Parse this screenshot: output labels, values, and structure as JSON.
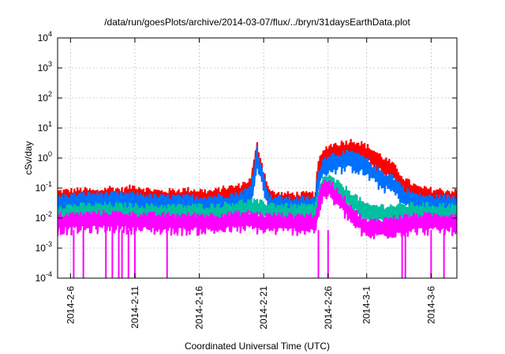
{
  "chart_data": {
    "type": "line",
    "title": "/data/run/goesPlots/archive/2014-03-07/flux/../bryn/31daysEarthData.plot",
    "xlabel": "Coordinated Universal Time (UTC)",
    "ylabel": "cSv/day",
    "x_start": "2014-02-05",
    "x_end": "2014-03-08",
    "y_scale": "log",
    "ylim": [
      0.0001,
      10000
    ],
    "y_ticks": [
      {
        "value": 0.0001,
        "base": "10",
        "exp": "-4"
      },
      {
        "value": 0.001,
        "base": "10",
        "exp": "-3"
      },
      {
        "value": 0.01,
        "base": "10",
        "exp": "-2"
      },
      {
        "value": 0.1,
        "base": "10",
        "exp": "-1"
      },
      {
        "value": 1,
        "base": "10",
        "exp": "0"
      },
      {
        "value": 10,
        "base": "10",
        "exp": "1"
      },
      {
        "value": 100,
        "base": "10",
        "exp": "2"
      },
      {
        "value": 1000,
        "base": "10",
        "exp": "3"
      },
      {
        "value": 10000,
        "base": "10",
        "exp": "4"
      }
    ],
    "x_ticks": [
      {
        "date": "2014-02-06",
        "label": "2014-2-6"
      },
      {
        "date": "2014-02-11",
        "label": "2014-2-11"
      },
      {
        "date": "2014-02-16",
        "label": "2014-2-16"
      },
      {
        "date": "2014-02-21",
        "label": "2014-2-21"
      },
      {
        "date": "2014-02-26",
        "label": "2014-2-26"
      },
      {
        "date": "2014-03-01",
        "label": "2014-3-1"
      },
      {
        "date": "2014-03-06",
        "label": "2014-3-6"
      }
    ],
    "grid": true,
    "series": [
      {
        "color": "#ff0000",
        "points": [
          [
            "2014-02-05",
            0.06
          ],
          [
            "2014-02-07",
            0.07
          ],
          [
            "2014-02-08",
            0.06
          ],
          [
            "2014-02-09",
            0.08
          ],
          [
            "2014-02-10",
            0.07
          ],
          [
            "2014-02-11",
            0.09
          ],
          [
            "2014-02-12",
            0.07
          ],
          [
            "2014-02-13",
            0.06
          ],
          [
            "2014-02-15",
            0.07
          ],
          [
            "2014-02-17",
            0.06
          ],
          [
            "2014-02-18",
            0.08
          ],
          [
            "2014-02-19",
            0.09
          ],
          [
            "2014-02-20",
            0.15
          ],
          [
            "2014-02-20T12:00",
            2.3
          ],
          [
            "2014-02-21",
            0.3
          ],
          [
            "2014-02-21T12:00",
            0.06
          ],
          [
            "2014-02-22",
            0.05
          ],
          [
            "2014-02-23",
            0.05
          ],
          [
            "2014-02-24",
            0.05
          ],
          [
            "2014-02-25",
            0.05
          ],
          [
            "2014-02-25T06:00",
            0.6
          ],
          [
            "2014-02-25T18:00",
            1.5
          ],
          [
            "2014-02-26",
            2.0
          ],
          [
            "2014-02-27",
            2.5
          ],
          [
            "2014-02-28",
            3.0
          ],
          [
            "2014-03-01",
            2.0
          ],
          [
            "2014-03-02",
            1.0
          ],
          [
            "2014-03-03",
            0.5
          ],
          [
            "2014-03-04",
            0.15
          ],
          [
            "2014-03-05",
            0.08
          ],
          [
            "2014-03-06",
            0.07
          ],
          [
            "2014-03-08",
            0.06
          ]
        ]
      },
      {
        "color": "#0070ff",
        "points": [
          [
            "2014-02-05",
            0.04
          ],
          [
            "2014-02-07",
            0.05
          ],
          [
            "2014-02-09",
            0.05
          ],
          [
            "2014-02-11",
            0.05
          ],
          [
            "2014-02-13",
            0.04
          ],
          [
            "2014-02-15",
            0.04
          ],
          [
            "2014-02-17",
            0.04
          ],
          [
            "2014-02-19",
            0.05
          ],
          [
            "2014-02-20",
            0.08
          ],
          [
            "2014-02-20T12:00",
            1.8
          ],
          [
            "2014-02-21",
            0.2
          ],
          [
            "2014-02-21T12:00",
            0.04
          ],
          [
            "2014-02-23",
            0.035
          ],
          [
            "2014-02-25",
            0.035
          ],
          [
            "2014-02-25T06:00",
            0.3
          ],
          [
            "2014-02-25T18:00",
            0.8
          ],
          [
            "2014-02-26",
            1.0
          ],
          [
            "2014-02-27",
            1.1
          ],
          [
            "2014-02-28",
            1.2
          ],
          [
            "2014-03-01",
            0.7
          ],
          [
            "2014-03-02",
            0.3
          ],
          [
            "2014-03-03",
            0.2
          ],
          [
            "2014-03-04",
            0.07
          ],
          [
            "2014-03-05",
            0.045
          ],
          [
            "2014-03-06",
            0.04
          ],
          [
            "2014-03-08",
            0.04
          ]
        ]
      },
      {
        "color": "#00c0a0",
        "points": [
          [
            "2014-02-05",
            0.02
          ],
          [
            "2014-02-09",
            0.022
          ],
          [
            "2014-02-13",
            0.02
          ],
          [
            "2014-02-17",
            0.02
          ],
          [
            "2014-02-20",
            0.03
          ],
          [
            "2014-02-21",
            0.025
          ],
          [
            "2014-02-23",
            0.02
          ],
          [
            "2014-02-25",
            0.02
          ],
          [
            "2014-02-25T12:00",
            0.15
          ],
          [
            "2014-02-26",
            0.2
          ],
          [
            "2014-02-27",
            0.1
          ],
          [
            "2014-02-28",
            0.05
          ],
          [
            "2014-03-01",
            0.02
          ],
          [
            "2014-03-03",
            0.02
          ],
          [
            "2014-03-05",
            0.022
          ],
          [
            "2014-03-08",
            0.02
          ]
        ]
      },
      {
        "color": "#ff00ff",
        "points": [
          [
            "2014-02-05",
            0.01
          ],
          [
            "2014-02-09",
            0.012
          ],
          [
            "2014-02-13",
            0.01
          ],
          [
            "2014-02-17",
            0.01
          ],
          [
            "2014-02-20",
            0.012
          ],
          [
            "2014-02-21",
            0.01
          ],
          [
            "2014-02-23",
            0.01
          ],
          [
            "2014-02-25",
            0.01
          ],
          [
            "2014-02-25T12:00",
            0.1
          ],
          [
            "2014-02-26",
            0.15
          ],
          [
            "2014-02-27",
            0.05
          ],
          [
            "2014-02-28",
            0.015
          ],
          [
            "2014-03-01",
            0.006
          ],
          [
            "2014-03-03",
            0.008
          ],
          [
            "2014-03-05",
            0.01
          ],
          [
            "2014-03-08",
            0.01
          ]
        ]
      }
    ],
    "dropouts_series_color": "#ff00ff",
    "dropouts": [
      "2014-02-06T06:00",
      "2014-02-07",
      "2014-02-08T18:00",
      "2014-02-09T06:00",
      "2014-02-09T18:00",
      "2014-02-10",
      "2014-02-10T12:00",
      "2014-02-11",
      "2014-02-13T12:00",
      "2014-02-25T06:00",
      "2014-02-26",
      "2014-03-03T18:00",
      "2014-03-04",
      "2014-03-06",
      "2014-03-07"
    ]
  }
}
